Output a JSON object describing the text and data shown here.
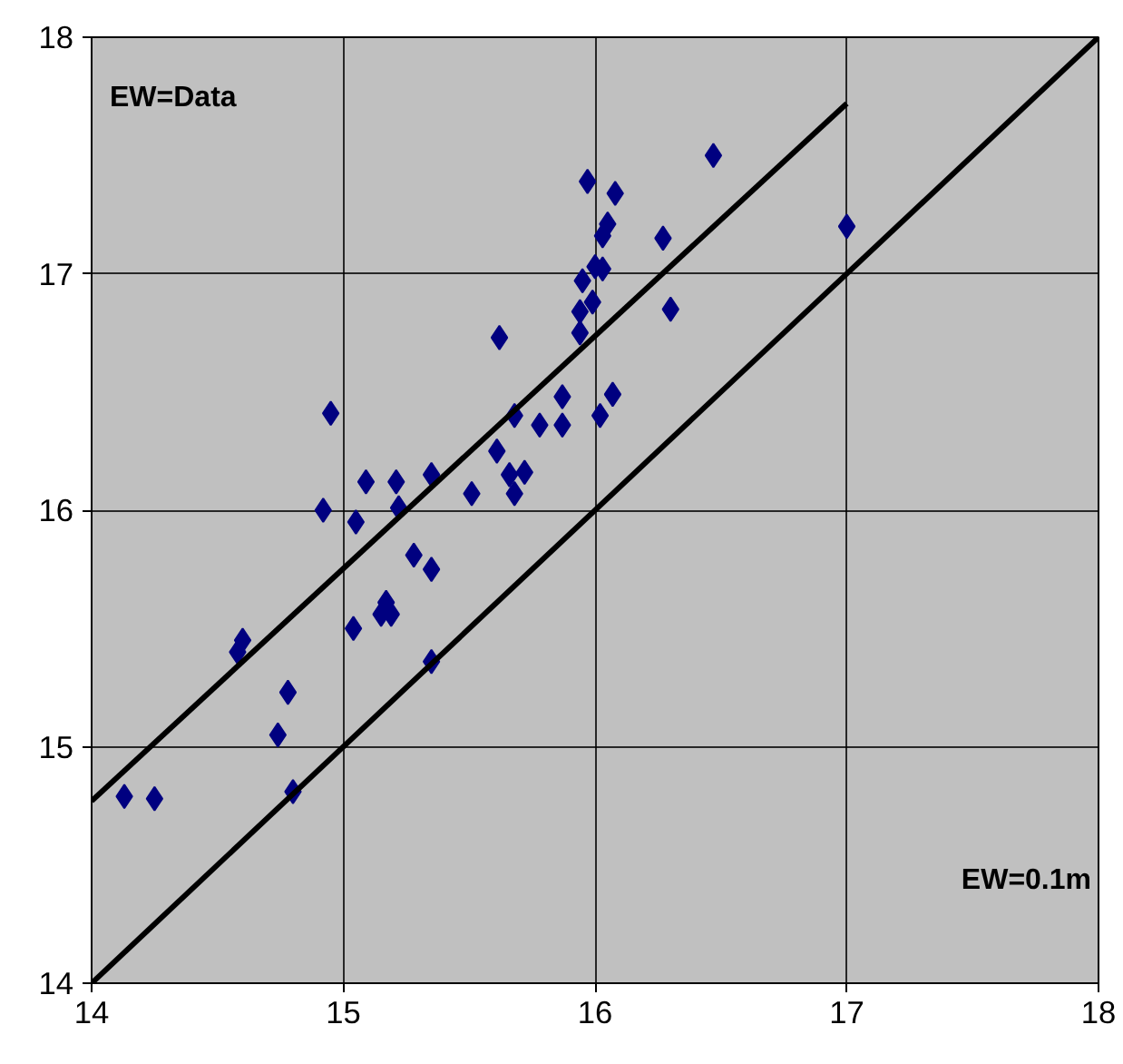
{
  "chart_data": {
    "type": "scatter",
    "xlim": [
      14,
      18
    ],
    "ylim": [
      14,
      18
    ],
    "xticks": [
      14,
      15,
      16,
      17,
      18
    ],
    "yticks": [
      14,
      15,
      16,
      17,
      18
    ],
    "grid": true,
    "marker": "diamond",
    "annotations": [
      "EW=Data",
      "EW=0.1m"
    ],
    "series": [
      {
        "color": "#000080",
        "x": [
          14.13,
          14.25,
          14.58,
          14.6,
          14.74,
          14.78,
          14.8,
          14.92,
          14.95,
          15.04,
          15.05,
          15.09,
          15.15,
          15.17,
          15.19,
          15.21,
          15.22,
          15.28,
          15.35,
          15.35,
          15.35,
          15.51,
          15.61,
          15.62,
          15.66,
          15.68,
          15.68,
          15.72,
          15.78,
          15.87,
          15.87,
          15.94,
          15.94,
          15.95,
          15.97,
          15.99,
          16.0,
          16.02,
          16.03,
          16.03,
          16.05,
          16.07,
          16.08,
          16.27,
          16.3,
          16.47,
          17.0
        ],
        "values": [
          14.79,
          14.78,
          15.4,
          15.45,
          15.05,
          15.23,
          14.81,
          16.0,
          16.41,
          15.5,
          15.95,
          16.12,
          15.56,
          15.61,
          15.56,
          16.12,
          16.01,
          15.81,
          15.75,
          16.15,
          15.36,
          16.07,
          16.25,
          16.73,
          16.15,
          16.4,
          16.07,
          16.16,
          16.36,
          16.36,
          16.48,
          16.84,
          16.75,
          16.97,
          17.39,
          16.88,
          17.03,
          16.4,
          17.02,
          17.16,
          17.21,
          16.49,
          17.34,
          17.15,
          16.85,
          17.5,
          17.2
        ]
      },
      {
        "type": "line",
        "color": "#000000",
        "line_style": "solid",
        "marker": "none",
        "x": [
          14,
          17
        ],
        "values": [
          14.77,
          17.72
        ]
      },
      {
        "type": "line",
        "color": "#000000",
        "line_style": "solid",
        "marker": "none",
        "x": [
          14,
          18
        ],
        "values": [
          14,
          18
        ]
      }
    ]
  }
}
